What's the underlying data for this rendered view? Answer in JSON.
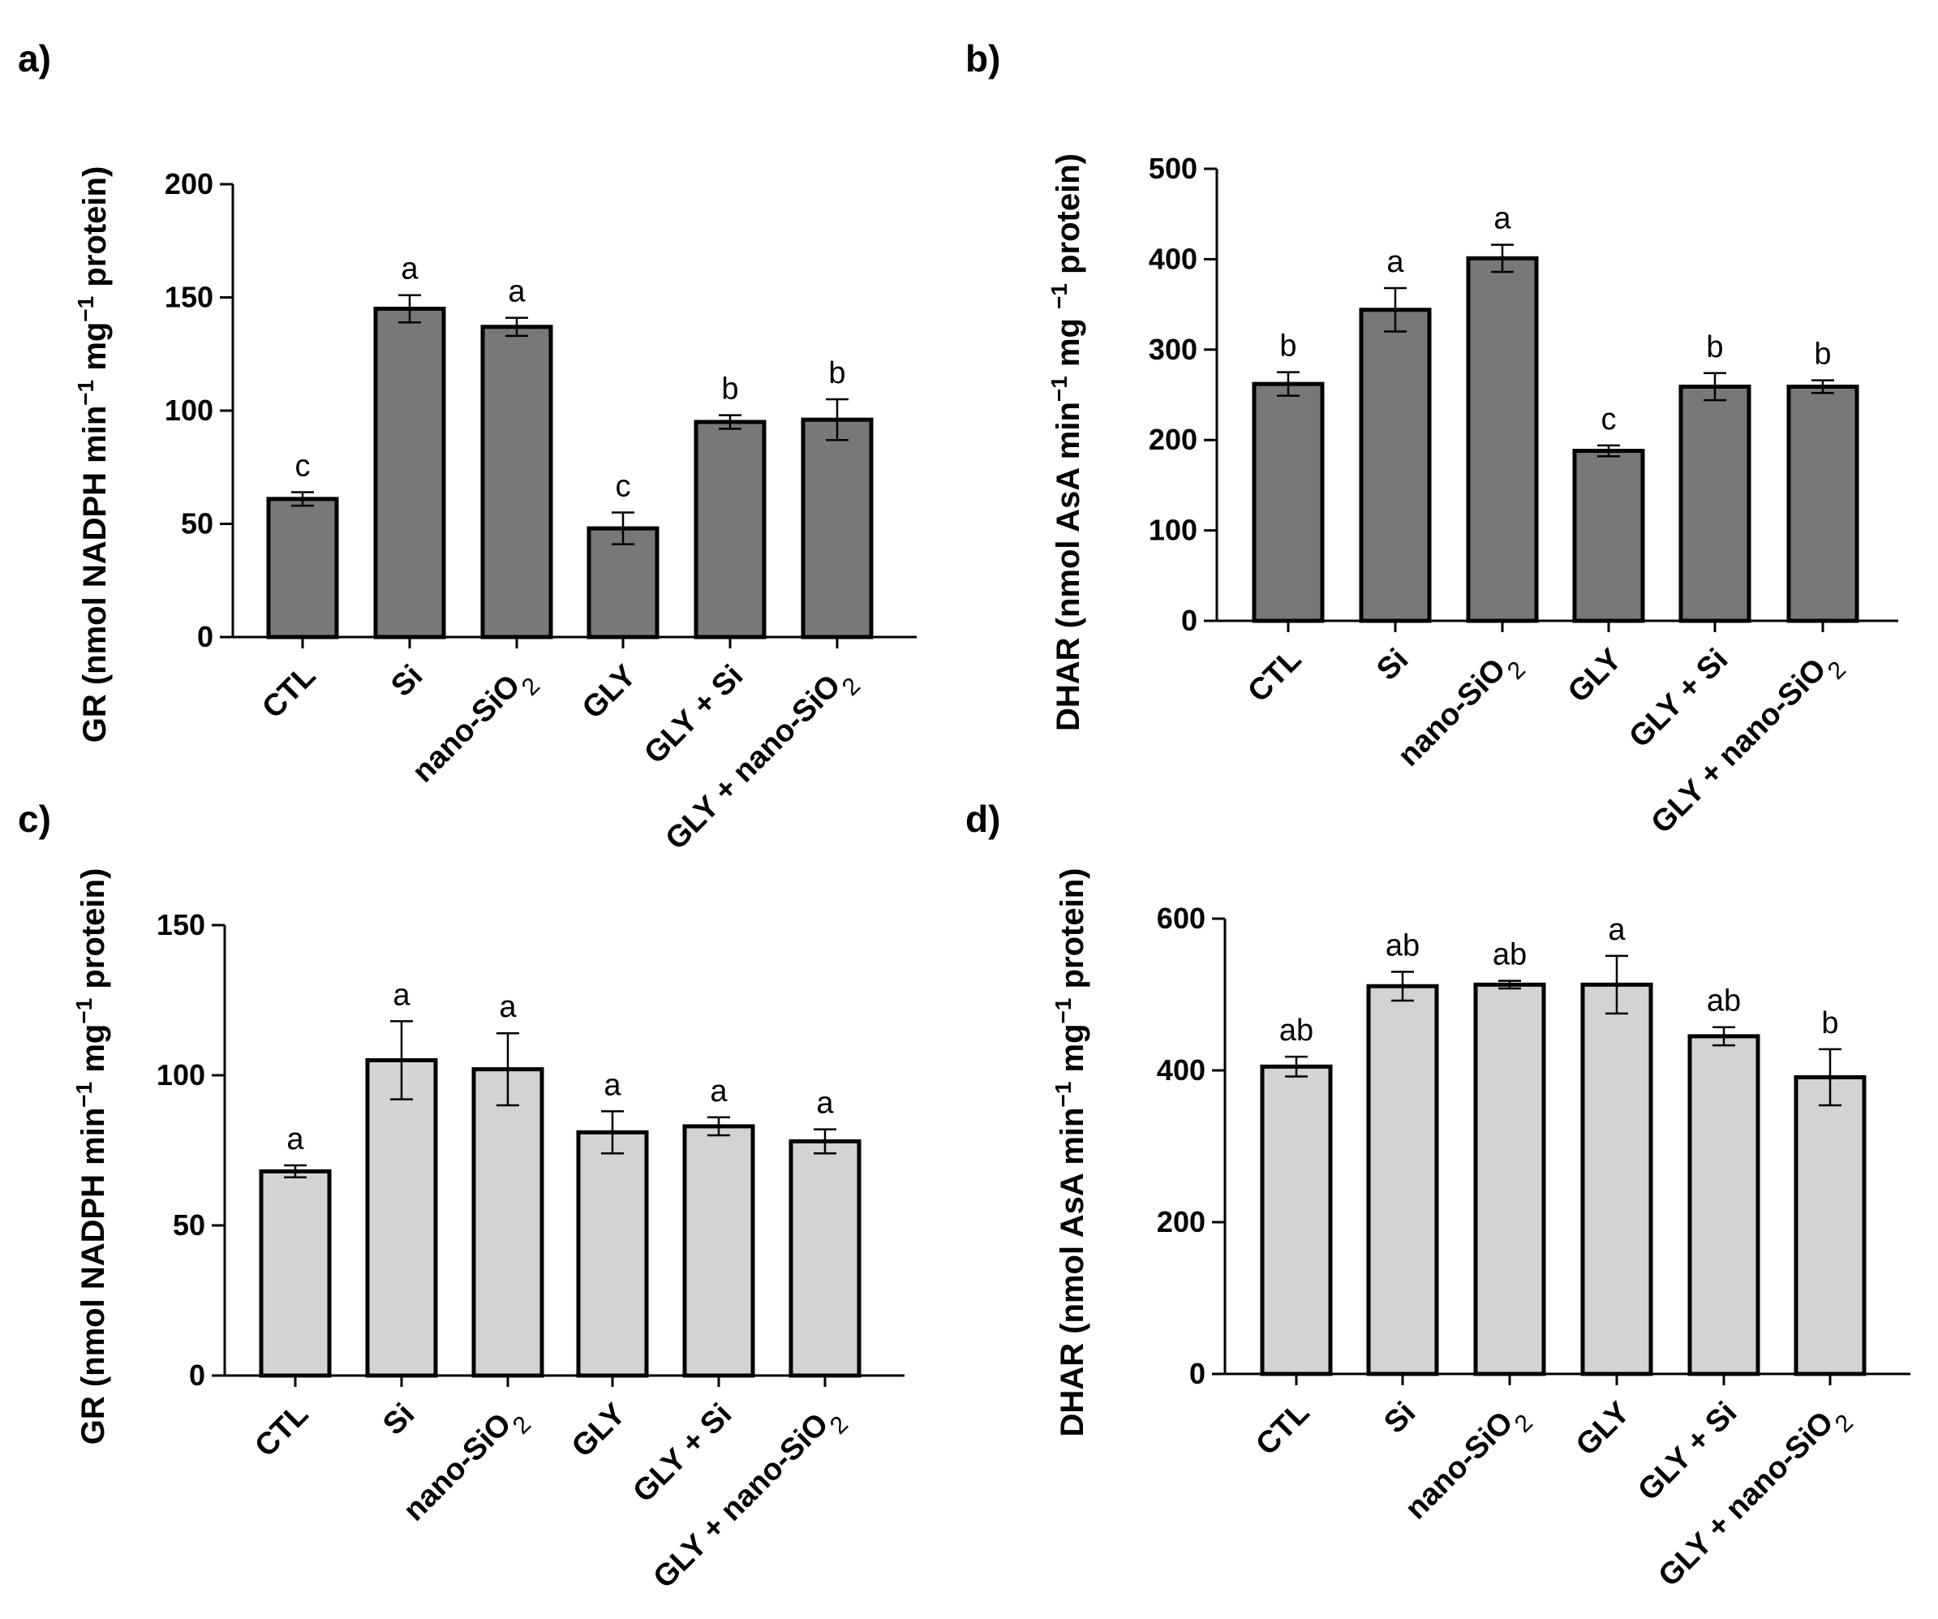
{
  "chart_data": [
    {
      "type": "bar",
      "panel": "a)",
      "categories": [
        "CTL",
        "Si",
        "nano-SiO",
        "GLY",
        "GLY + Si",
        "GLY + nano-SiO"
      ],
      "category_subscripts": [
        "",
        "",
        "2",
        "",
        "",
        "2"
      ],
      "values": [
        61,
        145,
        137,
        48,
        95,
        96
      ],
      "errors": [
        3,
        6,
        4,
        7,
        3,
        9
      ],
      "significance": [
        "c",
        "a",
        "a",
        "c",
        "b",
        "b"
      ],
      "ylabel_main": "GR (nmol NADPH min",
      "ylabel_sup1": "−1",
      "ylabel_mid": " mg",
      "ylabel_sup2": "−1",
      "ylabel_end": " protein)",
      "ylim": [
        0,
        200
      ],
      "yticks": [
        0,
        50,
        100,
        150,
        200
      ],
      "bar_color": "#787878"
    },
    {
      "type": "bar",
      "panel": "b)",
      "categories": [
        "CTL",
        "Si",
        "nano-SiO",
        "GLY",
        "GLY + Si",
        "GLY + nano-SiO"
      ],
      "category_subscripts": [
        "",
        "",
        "2",
        "",
        "",
        "2"
      ],
      "values": [
        262,
        344,
        401,
        188,
        259,
        259
      ],
      "errors": [
        13,
        24,
        15,
        6,
        15,
        7
      ],
      "significance": [
        "b",
        "a",
        "a",
        "c",
        "b",
        "b"
      ],
      "ylabel_main": "DHAR  (nmol AsA min",
      "ylabel_sup1": "−1",
      "ylabel_mid": " mg ",
      "ylabel_sup2": "−1",
      "ylabel_end": " protein)",
      "ylim": [
        0,
        500
      ],
      "yticks": [
        0,
        100,
        200,
        300,
        400,
        500
      ],
      "bar_color": "#787878"
    },
    {
      "type": "bar",
      "panel": "c)",
      "categories": [
        "CTL",
        "Si",
        "nano-SiO",
        "GLY",
        "GLY + Si",
        "GLY + nano-SiO"
      ],
      "category_subscripts": [
        "",
        "",
        "2",
        "",
        "",
        "2"
      ],
      "values": [
        68,
        105,
        102,
        81,
        83,
        78
      ],
      "errors": [
        2,
        13,
        12,
        7,
        3,
        4
      ],
      "significance": [
        "a",
        "a",
        "a",
        "a",
        "a",
        "a"
      ],
      "ylabel_main": "GR (nmol NADPH min",
      "ylabel_sup1": "−1",
      "ylabel_mid": " mg",
      "ylabel_sup2": "−1",
      "ylabel_end": " protein)",
      "ylim": [
        0,
        150
      ],
      "yticks": [
        0,
        50,
        100,
        150
      ],
      "bar_color": "#d3d3d3"
    },
    {
      "type": "bar",
      "panel": "d)",
      "categories": [
        "CTL",
        "Si",
        "nano-SiO",
        "GLY",
        "GLY + Si",
        "GLY + nano-SiO"
      ],
      "category_subscripts": [
        "",
        "",
        "2",
        "",
        "",
        "2"
      ],
      "values": [
        405,
        511,
        513,
        513,
        445,
        391
      ],
      "errors": [
        13,
        19,
        5,
        38,
        12,
        37
      ],
      "significance": [
        "ab",
        "ab",
        "ab",
        "a",
        "ab",
        "b"
      ],
      "ylabel_main": "DHAR (nmol AsA min",
      "ylabel_sup1": "−1",
      "ylabel_mid": " mg",
      "ylabel_sup2": "−1",
      "ylabel_end": " protein)",
      "ylim": [
        0,
        600
      ],
      "yticks": [
        0,
        200,
        400,
        600
      ],
      "bar_color": "#d3d3d3"
    }
  ]
}
